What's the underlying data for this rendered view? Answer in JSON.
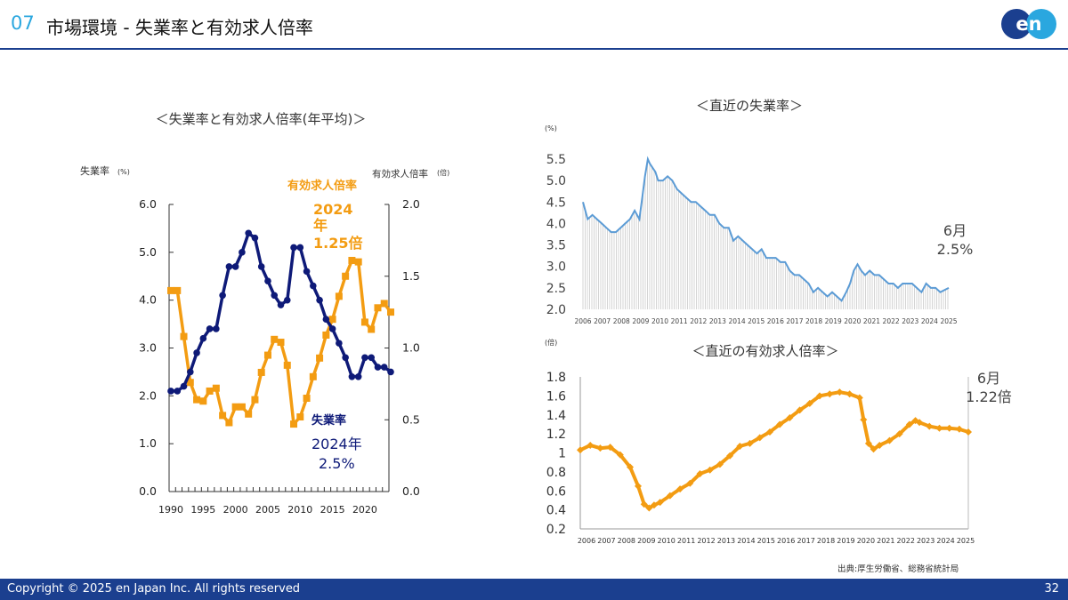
{
  "header": {
    "section_number": "07",
    "title": "市場環境 - 失業率と有効求人倍率",
    "logo_text": "en"
  },
  "footer": {
    "copyright": "Copyright © 2025 en Japan Inc. All rights reserved",
    "page_number": "32"
  },
  "source": "出典:厚生労働省、総務省統計局",
  "colors": {
    "unemployment_dark": "#0e1a78",
    "job_ratio": "#f39c12",
    "recent_unemployment": "#5b9bd5",
    "brand": "#1b3f8f"
  },
  "chart_data": [
    {
      "type": "line",
      "title": "＜失業率と有効求人倍率(年平均)＞",
      "left_axis_label": "失業率",
      "left_axis_unit": "(%)",
      "right_axis_label": "有効求人倍率",
      "right_axis_unit": "(倍)",
      "ylim_left": [
        0,
        6
      ],
      "ylim_right": [
        0,
        2
      ],
      "left_ticks": [
        "0.0",
        "1.0",
        "2.0",
        "3.0",
        "4.0",
        "5.0",
        "6.0"
      ],
      "right_ticks": [
        "0.0",
        "0.5",
        "1.0",
        "1.5",
        "2.0"
      ],
      "x_tick_labels": [
        "1990",
        "1995",
        "2000",
        "2005",
        "2010",
        "2015",
        "2020"
      ],
      "x": [
        1990,
        1991,
        1992,
        1993,
        1994,
        1995,
        1996,
        1997,
        1998,
        1999,
        2000,
        2001,
        2002,
        2003,
        2004,
        2005,
        2006,
        2007,
        2008,
        2009,
        2010,
        2011,
        2012,
        2013,
        2014,
        2015,
        2016,
        2017,
        2018,
        2019,
        2020,
        2021,
        2022,
        2023,
        2024
      ],
      "series": [
        {
          "name": "有効求人倍率",
          "axis": "right",
          "values": [
            1.4,
            1.4,
            1.08,
            0.76,
            0.64,
            0.63,
            0.7,
            0.72,
            0.53,
            0.48,
            0.59,
            0.59,
            0.54,
            0.64,
            0.83,
            0.95,
            1.06,
            1.04,
            0.88,
            0.47,
            0.52,
            0.65,
            0.8,
            0.93,
            1.09,
            1.2,
            1.36,
            1.5,
            1.61,
            1.6,
            1.18,
            1.13,
            1.28,
            1.31,
            1.25
          ]
        },
        {
          "name": "失業率",
          "axis": "left",
          "values": [
            2.1,
            2.1,
            2.2,
            2.5,
            2.9,
            3.2,
            3.4,
            3.4,
            4.1,
            4.7,
            4.7,
            5.0,
            5.4,
            5.3,
            4.7,
            4.4,
            4.1,
            3.9,
            4.0,
            5.1,
            5.1,
            4.6,
            4.3,
            4.0,
            3.6,
            3.4,
            3.1,
            2.8,
            2.4,
            2.4,
            2.8,
            2.8,
            2.6,
            2.6,
            2.5
          ]
        }
      ],
      "annotations": {
        "job_ratio_label": "有効求人倍率",
        "job_ratio_year": "2024",
        "job_ratio_year_suffix": "年",
        "job_ratio_value": "1.25倍",
        "unemployment_label": "失業率",
        "unemployment_year": "2024年",
        "unemployment_value": "2.5%"
      }
    },
    {
      "type": "area",
      "title": "＜直近の失業率＞",
      "unit": "(%)",
      "ylim": [
        2.0,
        5.5
      ],
      "y_ticks": [
        "2.0",
        "2.5",
        "3.0",
        "3.5",
        "4.0",
        "4.5",
        "5.0",
        "5.5"
      ],
      "x_tick_labels": [
        "2006",
        "2007",
        "2008",
        "2009",
        "2010",
        "2011",
        "2012",
        "2013",
        "2014",
        "2015",
        "2016",
        "2017",
        "2018",
        "2019",
        "2020",
        "2021",
        "2022",
        "2023",
        "2024",
        "2025"
      ],
      "x_range": [
        2006.0,
        2025.45
      ],
      "x": [
        2006.0,
        2006.25,
        2006.5,
        2006.75,
        2007.0,
        2007.25,
        2007.5,
        2007.75,
        2008.0,
        2008.25,
        2008.5,
        2008.75,
        2009.0,
        2009.15,
        2009.3,
        2009.45,
        2009.55,
        2009.7,
        2009.85,
        2010.0,
        2010.25,
        2010.5,
        2010.75,
        2011.0,
        2011.25,
        2011.5,
        2011.75,
        2012.0,
        2012.25,
        2012.5,
        2012.75,
        2013.0,
        2013.25,
        2013.5,
        2013.75,
        2014.0,
        2014.25,
        2014.5,
        2014.75,
        2015.0,
        2015.25,
        2015.5,
        2015.75,
        2016.0,
        2016.25,
        2016.5,
        2016.75,
        2017.0,
        2017.25,
        2017.5,
        2017.75,
        2018.0,
        2018.25,
        2018.5,
        2018.75,
        2019.0,
        2019.25,
        2019.5,
        2019.75,
        2020.0,
        2020.2,
        2020.4,
        2020.6,
        2020.8,
        2021.0,
        2021.25,
        2021.5,
        2021.75,
        2022.0,
        2022.25,
        2022.5,
        2022.75,
        2023.0,
        2023.25,
        2023.5,
        2023.75,
        2024.0,
        2024.25,
        2024.5,
        2024.75,
        2025.0,
        2025.45
      ],
      "values": [
        4.5,
        4.1,
        4.2,
        4.1,
        4.0,
        3.9,
        3.8,
        3.8,
        3.9,
        4.0,
        4.1,
        4.3,
        4.1,
        4.6,
        5.1,
        5.5,
        5.4,
        5.3,
        5.2,
        5.0,
        5.0,
        5.1,
        5.0,
        4.8,
        4.7,
        4.6,
        4.5,
        4.5,
        4.4,
        4.3,
        4.2,
        4.2,
        4.0,
        3.9,
        3.9,
        3.6,
        3.7,
        3.6,
        3.5,
        3.4,
        3.3,
        3.4,
        3.2,
        3.2,
        3.2,
        3.1,
        3.1,
        2.9,
        2.8,
        2.8,
        2.7,
        2.6,
        2.4,
        2.5,
        2.4,
        2.3,
        2.4,
        2.3,
        2.2,
        2.4,
        2.6,
        2.9,
        3.05,
        2.9,
        2.8,
        2.9,
        2.8,
        2.8,
        2.7,
        2.6,
        2.6,
        2.5,
        2.6,
        2.6,
        2.6,
        2.5,
        2.4,
        2.6,
        2.5,
        2.5,
        2.4,
        2.5
      ],
      "annotation_month": "6月",
      "annotation_value": "2.5%"
    },
    {
      "type": "line",
      "title": "＜直近の有効求人倍率＞",
      "unit": "(倍)",
      "ylim": [
        0.2,
        1.8
      ],
      "y_ticks": [
        "0.2",
        "0.4",
        "0.6",
        "0.8",
        "1",
        "1.2",
        "1.4",
        "1.6",
        "1.8"
      ],
      "x_tick_labels": [
        "2006",
        "2007",
        "2008",
        "2009",
        "2010",
        "2011",
        "2012",
        "2013",
        "2014",
        "2015",
        "2016",
        "2017",
        "2018",
        "2019",
        "2020",
        "2021",
        "2022",
        "2023",
        "2024",
        "2025"
      ],
      "x_range": [
        2006.0,
        2025.45
      ],
      "x": [
        2006.0,
        2006.5,
        2007.0,
        2007.5,
        2008.0,
        2008.5,
        2008.9,
        2009.2,
        2009.45,
        2009.7,
        2010.0,
        2010.5,
        2011.0,
        2011.5,
        2012.0,
        2012.5,
        2013.0,
        2013.5,
        2014.0,
        2014.5,
        2015.0,
        2015.5,
        2016.0,
        2016.5,
        2017.0,
        2017.5,
        2018.0,
        2018.5,
        2019.0,
        2019.5,
        2020.0,
        2020.2,
        2020.45,
        2020.7,
        2021.0,
        2021.5,
        2022.0,
        2022.5,
        2022.8,
        2023.0,
        2023.5,
        2024.0,
        2024.5,
        2025.0,
        2025.45
      ],
      "values": [
        1.03,
        1.08,
        1.05,
        1.06,
        0.98,
        0.85,
        0.65,
        0.46,
        0.42,
        0.45,
        0.48,
        0.55,
        0.62,
        0.68,
        0.78,
        0.82,
        0.88,
        0.97,
        1.07,
        1.1,
        1.16,
        1.22,
        1.3,
        1.37,
        1.45,
        1.52,
        1.6,
        1.62,
        1.64,
        1.62,
        1.58,
        1.35,
        1.1,
        1.04,
        1.08,
        1.13,
        1.2,
        1.3,
        1.34,
        1.32,
        1.28,
        1.26,
        1.26,
        1.25,
        1.22
      ],
      "annotation_month": "6月",
      "annotation_value": "1.22倍"
    }
  ]
}
